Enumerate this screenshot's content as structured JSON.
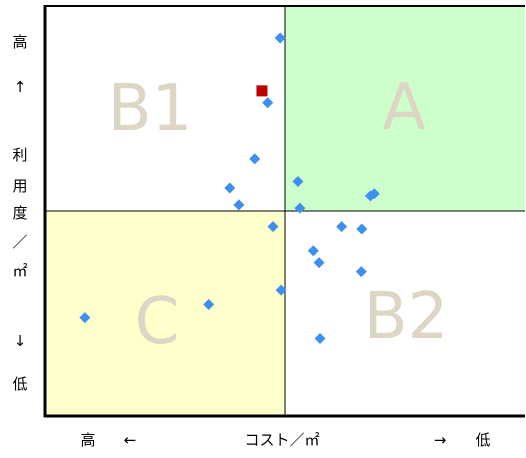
{
  "chart_data": {
    "type": "scatter",
    "title": "",
    "xlabel": "コスト／㎡",
    "ylabel": "利用度／㎡",
    "x_left_label": "高",
    "x_left_arrow": "←",
    "x_right_arrow": "→",
    "x_right_label": "低",
    "y_top_label": "高",
    "y_top_arrow": "↑",
    "y_bottom_arrow": "↓",
    "y_bottom_label": "低",
    "xlim": [
      0,
      100
    ],
    "ylim": [
      0,
      100
    ],
    "x_divider": 50,
    "y_divider": 50,
    "grid": false,
    "quadrants": [
      {
        "label": "A",
        "x": [
          50,
          100
        ],
        "y": [
          50,
          100
        ],
        "color": "#ccffcc"
      },
      {
        "label": "B1",
        "x": [
          0,
          50
        ],
        "y": [
          50,
          100
        ],
        "color": "#ffffff"
      },
      {
        "label": "C",
        "x": [
          0,
          50
        ],
        "y": [
          0,
          50
        ],
        "color": "#ffffcc"
      },
      {
        "label": "B2",
        "x": [
          50,
          100
        ],
        "y": [
          0,
          50
        ],
        "color": "#ffffff"
      }
    ],
    "series": [
      {
        "marker": "diamond",
        "color": "#3d8ff0",
        "points": [
          [
            49.0,
            92.2
          ],
          [
            46.4,
            76.4
          ],
          [
            43.7,
            62.7
          ],
          [
            38.5,
            55.6
          ],
          [
            40.4,
            51.5
          ],
          [
            47.5,
            46.2
          ],
          [
            52.7,
            57.2
          ],
          [
            53.1,
            50.7
          ],
          [
            67.8,
            53.7
          ],
          [
            68.6,
            54.2
          ],
          [
            49.2,
            30.7
          ],
          [
            34.1,
            27.2
          ],
          [
            8.3,
            24.0
          ],
          [
            61.8,
            46.2
          ],
          [
            66.0,
            45.6
          ],
          [
            55.9,
            40.3
          ],
          [
            57.1,
            37.4
          ],
          [
            65.9,
            35.2
          ],
          [
            57.3,
            18.9
          ]
        ]
      },
      {
        "marker": "square",
        "color": "#c00000",
        "points": [
          [
            45.2,
            79.3
          ]
        ]
      }
    ]
  }
}
